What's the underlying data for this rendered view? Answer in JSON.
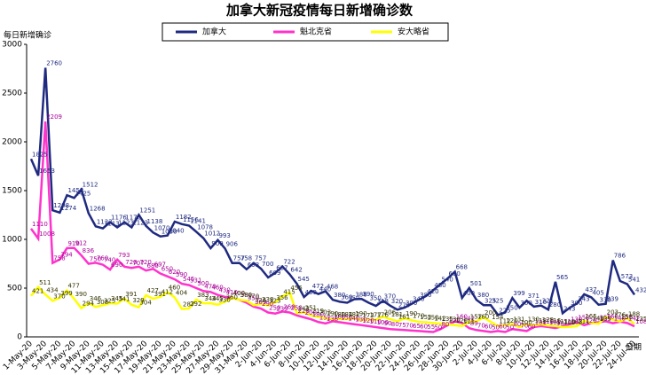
{
  "chart_data": {
    "type": "line",
    "title": "加拿大新冠疫情每日新增确诊数",
    "y_label": "每日新增确诊",
    "x_label": "日期",
    "categories": [
      "1-May-20",
      null,
      "3-May-20",
      null,
      "5-May-20",
      null,
      "7-May-20",
      null,
      "9-May-20",
      null,
      "11-May-20",
      null,
      "13-May-20",
      null,
      "15-May-20",
      null,
      "17-May-20",
      null,
      "19-May-20",
      null,
      "21-May-20",
      null,
      "23-May-20",
      null,
      "25-May-20",
      null,
      "27-May-20",
      null,
      "29-May-20",
      null,
      "31-May-20",
      null,
      "2-Jun-20",
      null,
      "4-Jun-20",
      null,
      "6-Jun-20",
      null,
      "8-Jun-20",
      null,
      "10-Jun-20",
      null,
      "12-Jun-20",
      null,
      "14-Jun-20",
      null,
      "16-Jun-20",
      null,
      "18-Jun-20",
      null,
      "20-Jun-20",
      null,
      "22-Jun-20",
      null,
      "24-Jun-20",
      null,
      "26-Jun-20",
      null,
      "28-Jun-20",
      null,
      "30-Jun-20",
      null,
      "2-Jul-20",
      null,
      "4-Jul-20",
      null,
      "6-Jul-20",
      null,
      "8-Jul-20",
      null,
      "10-Jul-20",
      null,
      "12-Jul-20",
      null,
      "14-Jul-20",
      null,
      "16-Jul-20",
      null,
      "18-Jul-20",
      null,
      "20-Jul-20",
      null,
      "22-Jul-20",
      null,
      "24-Jul-20"
    ],
    "series": [
      {
        "name": "加拿大",
        "color": "#1f2a80",
        "values": [
          1825,
          1653,
          2760,
          1298,
          1274,
          1453,
          1425,
          1512,
          1268,
          1133,
          1113,
          1176,
          1123,
          1176,
          1123,
          1251,
          1138,
          1070,
          1030,
          1040,
          1182,
          1156,
          1141,
          1078,
          1012,
          909,
          993,
          906,
          757,
          758,
          693,
          757,
          700,
          609,
          657,
          722,
          642,
          545,
          409,
          472,
          440,
          468,
          380,
          360,
          350,
          386,
          390,
          350,
          318,
          370,
          320,
          279,
          300,
          340,
          380,
          420,
          480,
          540,
          600,
          668,
          400,
          501,
          380,
          325,
          325,
          225,
          250,
          399,
          300,
          371,
          310,
          321,
          280,
          565,
          243,
          300,
          343,
          437,
          405,
          330,
          339,
          786,
          573,
          541,
          432
        ]
      },
      {
        "name": "魁北克省",
        "color": "#ff33cc",
        "values": [
          1110,
          1008,
          2209,
          758,
          794,
          910,
          912,
          836,
          750,
          760,
          740,
          690,
          793,
          720,
          707,
          720,
          680,
          697,
          650,
          620,
          590,
          545,
          531,
          500,
          470,
          460,
          430,
          410,
          400,
          380,
          350,
          309,
          290,
          250,
          239,
          260,
          250,
          220,
          200,
          180,
          152,
          138,
          160,
          150,
          140,
          130,
          120,
          110,
          100,
          90,
          80,
          75,
          70,
          65,
          60,
          55,
          50,
          80,
          120,
          160,
          142,
          89,
          70,
          60,
          50,
          60,
          50,
          80,
          70,
          60,
          101,
          110,
          101,
          90,
          110,
          130,
          150,
          120,
          140,
          150,
          160,
          140,
          155,
          142,
          108
        ]
      },
      {
        "name": "安大略省",
        "color": "#ffff00",
        "values": [
          421,
          511,
          434,
          370,
          399,
          477,
          390,
          294,
          346,
          308,
          325,
          345,
          341,
          391,
          329,
          304,
          427,
          391,
          412,
          460,
          404,
          287,
          292,
          383,
          344,
          345,
          330,
          360,
          400,
          380,
          370,
          326,
          338,
          323,
          356,
          415,
          455,
          243,
          251,
          219,
          203,
          190,
          180,
          184,
          182,
          190,
          173,
          177,
          176,
          206,
          181,
          161,
          190,
          170,
          153,
          150,
          142,
          135,
          130,
          120,
          111,
          157,
          160,
          200,
          154,
          112,
          120,
          131,
          100,
          130,
          118,
          129,
          116,
          111,
          100,
          103,
          111,
          165,
          143,
          135,
          203,
          176,
          158,
          188,
          135
        ]
      }
    ],
    "ylim": [
      0,
      3000
    ],
    "yticks": [
      0,
      500,
      1000,
      1500,
      2000,
      2500,
      3000
    ],
    "grid": false,
    "legend": "top"
  }
}
